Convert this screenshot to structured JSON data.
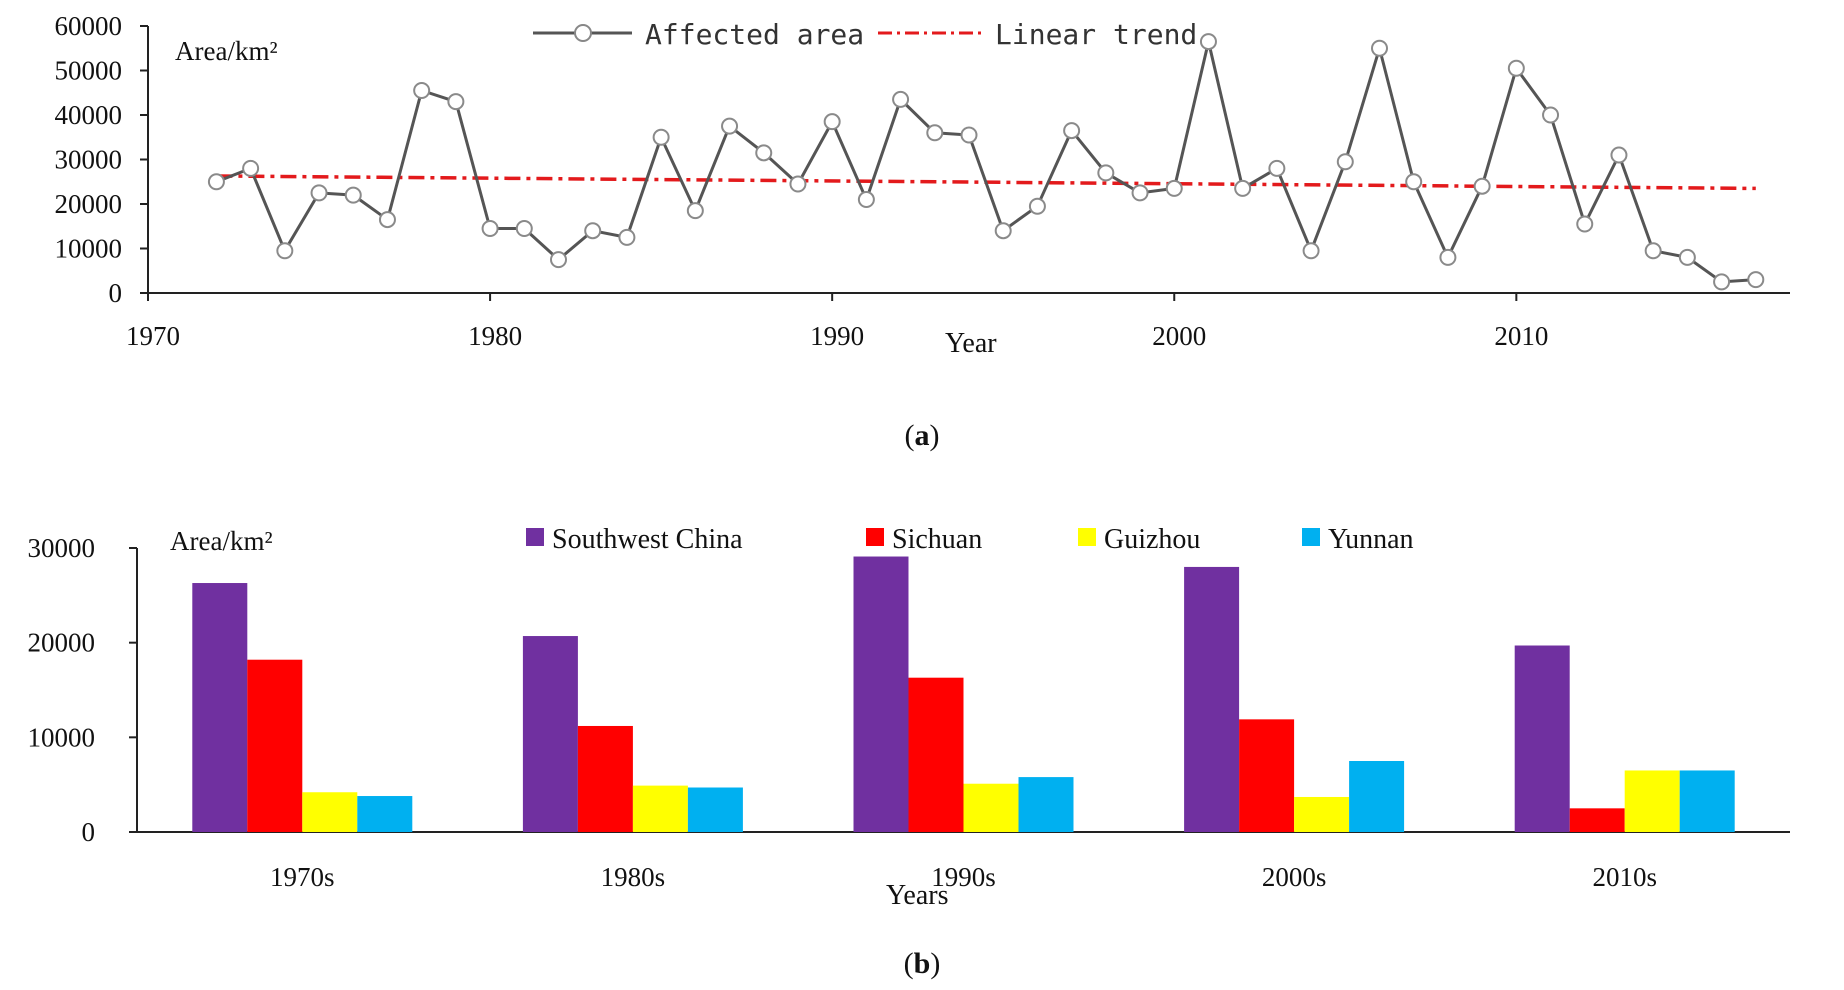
{
  "chart_data": [
    {
      "type": "line",
      "panel_label": "(a)",
      "panel_letter": "a",
      "unit_label": "Area/km²",
      "xlabel": "Year",
      "ylim": [
        0,
        60000
      ],
      "yticks": [
        0,
        10000,
        20000,
        30000,
        40000,
        50000,
        60000
      ],
      "xlim": [
        1970,
        2018
      ],
      "xticks": [
        1970,
        1980,
        1990,
        2000,
        2010
      ],
      "legend_position": "top-center",
      "grid": false,
      "series": [
        {
          "name": "Affected area",
          "color": "#555555",
          "marker": "open-circle",
          "x": [
            1972,
            1973,
            1974,
            1975,
            1976,
            1977,
            1978,
            1979,
            1980,
            1981,
            1982,
            1983,
            1984,
            1985,
            1986,
            1987,
            1988,
            1989,
            1990,
            1991,
            1992,
            1993,
            1994,
            1995,
            1996,
            1997,
            1998,
            1999,
            2000,
            2001,
            2002,
            2003,
            2004,
            2005,
            2006,
            2007,
            2008,
            2009,
            2010,
            2011,
            2012,
            2013,
            2014,
            2015,
            2016,
            2017
          ],
          "values": [
            25000,
            28000,
            9500,
            22500,
            22000,
            16500,
            45500,
            43000,
            14500,
            14500,
            7500,
            14000,
            12500,
            35000,
            18500,
            37500,
            31500,
            24500,
            38500,
            21000,
            43500,
            36000,
            35500,
            14000,
            19500,
            36500,
            27000,
            22500,
            23500,
            56500,
            23500,
            28000,
            9500,
            29500,
            55000,
            25000,
            8000,
            24000,
            50500,
            40000,
            15500,
            31000,
            9500,
            8000,
            2500,
            3000
          ]
        },
        {
          "name": "Linear trend",
          "color": "#e31a1c",
          "style": "dash-dot",
          "x": [
            1972,
            2017
          ],
          "values": [
            26300,
            23500
          ]
        }
      ]
    },
    {
      "type": "bar",
      "panel_label": "(b)",
      "panel_letter": "b",
      "unit_label": "Area/km²",
      "xlabel": "Years",
      "ylim": [
        0,
        30000
      ],
      "yticks": [
        0,
        10000,
        20000,
        30000
      ],
      "categories": [
        "1970s",
        "1980s",
        "1990s",
        "2000s",
        "2010s"
      ],
      "legend_position": "top-center",
      "grid": false,
      "series": [
        {
          "name": "Southwest China",
          "color": "#7030a0",
          "values": [
            26300,
            20700,
            29100,
            28000,
            19700
          ]
        },
        {
          "name": "Sichuan",
          "color": "#ff0000",
          "values": [
            18200,
            11200,
            16300,
            11900,
            2500
          ]
        },
        {
          "name": "Guizhou",
          "color": "#ffff00",
          "values": [
            4200,
            4900,
            5100,
            3700,
            6500
          ]
        },
        {
          "name": "Yunnan",
          "color": "#00b0f0",
          "values": [
            3800,
            4700,
            5800,
            7500,
            6500
          ]
        }
      ]
    }
  ]
}
